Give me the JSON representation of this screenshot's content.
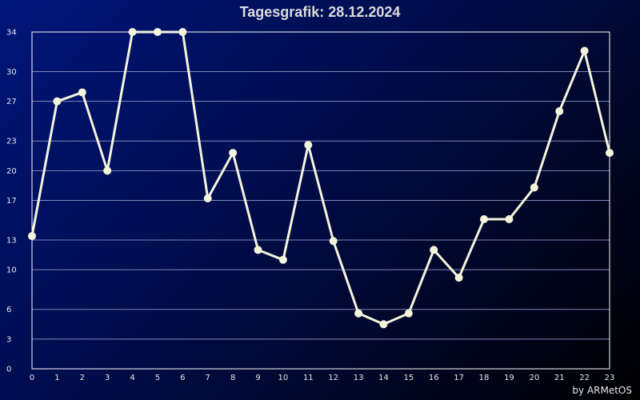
{
  "chart_data": {
    "type": "line",
    "title": "Tagesgrafik: 28.12.2024",
    "xlabel": "",
    "ylabel": "",
    "x": [
      0,
      1,
      2,
      3,
      4,
      5,
      6,
      7,
      8,
      9,
      10,
      11,
      12,
      13,
      14,
      15,
      16,
      17,
      18,
      19,
      20,
      21,
      22,
      23
    ],
    "xticks": [
      "0",
      "1",
      "2",
      "3",
      "4",
      "5",
      "6",
      "7",
      "8",
      "9",
      "10",
      "11",
      "12",
      "13",
      "14",
      "15",
      "16",
      "17",
      "18",
      "19",
      "20",
      "21",
      "22",
      "23"
    ],
    "yticks": [
      "0",
      "3",
      "6",
      "10",
      "13",
      "17",
      "20",
      "23",
      "27",
      "30",
      "34"
    ],
    "ylim": [
      0,
      34
    ],
    "grid": true,
    "series": [
      {
        "values": [
          13.4,
          27.0,
          27.9,
          20.0,
          34.0,
          34.0,
          34.0,
          17.2,
          21.8,
          12.0,
          11.0,
          22.6,
          12.9,
          5.6,
          4.5,
          5.6,
          12.0,
          9.2,
          15.1,
          15.1,
          18.3,
          26.0,
          32.1,
          21.8
        ],
        "color": "#f4f4dc"
      }
    ]
  },
  "credit": "by ARMetOS",
  "colors": {
    "line": "#f4f4dc",
    "grid": "#7f86b8",
    "axis": "#ffffff"
  }
}
